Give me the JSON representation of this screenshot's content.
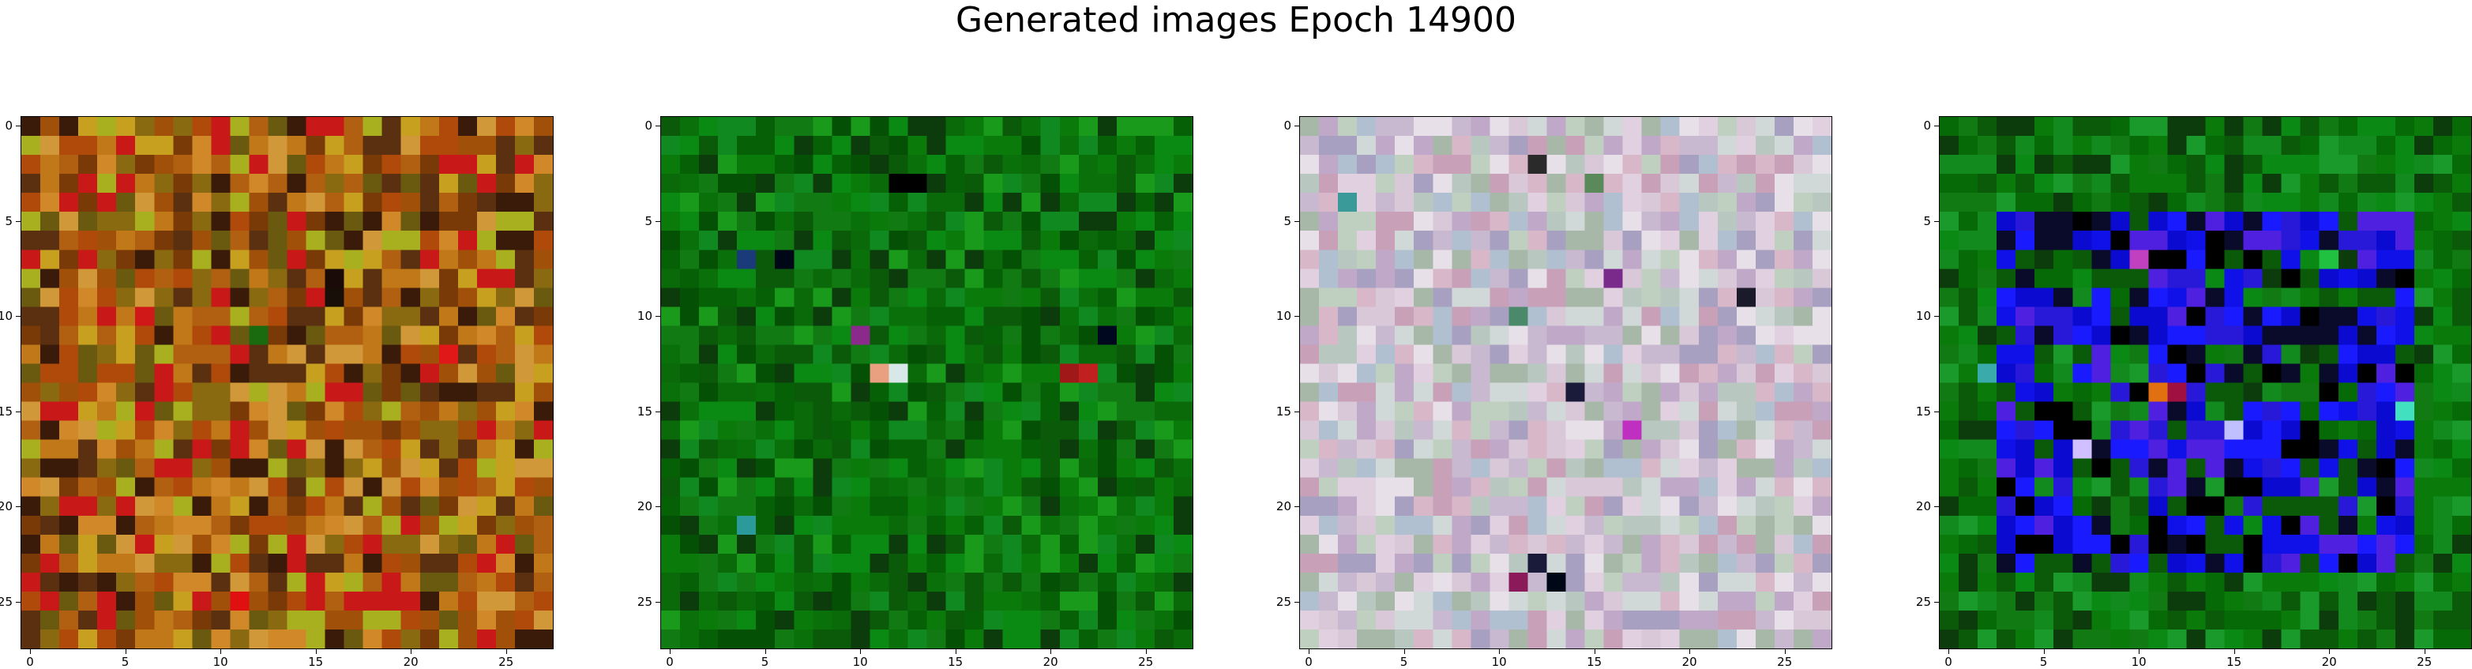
{
  "title": "Generated images Epoch 14900",
  "chart_data": [
    {
      "type": "heatmap",
      "title": "",
      "grid_size": 28,
      "xticks": [
        0,
        5,
        10,
        15,
        20,
        25
      ],
      "yticks": [
        0,
        5,
        10,
        15,
        20,
        25
      ],
      "palette": [
        "#b06010",
        "#c07818",
        "#a05008",
        "#8a6a10",
        "#c8a020",
        "#6a5a10",
        "#b04a0a",
        "#d08828",
        "#7a3a08",
        "#c81818",
        "#3a1a08",
        "#a8b020",
        "#d09838",
        "#5a3010"
      ],
      "highlights": [
        {
          "x": 6,
          "y": 10,
          "color": "#d01818"
        },
        {
          "x": 12,
          "y": 11,
          "color": "#1a6a10"
        },
        {
          "x": 16,
          "y": 8,
          "color": "#1a0a08"
        },
        {
          "x": 22,
          "y": 12,
          "color": "#e01818"
        },
        {
          "x": 11,
          "y": 25,
          "color": "#e01010"
        },
        {
          "x": 16,
          "y": 9,
          "color": "#181008"
        }
      ]
    },
    {
      "type": "heatmap",
      "title": "",
      "grid_size": 28,
      "xticks": [
        0,
        5,
        10,
        15,
        20,
        25
      ],
      "yticks": [
        0,
        5,
        10,
        15,
        20,
        25
      ],
      "palette": [
        "#0a6a0a",
        "#0a7a0a",
        "#066006",
        "#0a8a12",
        "#045004",
        "#108a20",
        "#0a5a0a",
        "#1a9a1a",
        "#0a700a",
        "#0c3c0c",
        "#127a12"
      ],
      "highlights": [
        {
          "x": 12,
          "y": 3,
          "color": "#000000"
        },
        {
          "x": 13,
          "y": 3,
          "color": "#000000"
        },
        {
          "x": 4,
          "y": 7,
          "color": "#1a3a7a"
        },
        {
          "x": 6,
          "y": 7,
          "color": "#000818"
        },
        {
          "x": 10,
          "y": 11,
          "color": "#8a2a8a"
        },
        {
          "x": 12,
          "y": 13,
          "color": "#d8e8e8"
        },
        {
          "x": 11,
          "y": 13,
          "color": "#e8a080"
        },
        {
          "x": 21,
          "y": 13,
          "color": "#a01818"
        },
        {
          "x": 22,
          "y": 13,
          "color": "#c02020"
        },
        {
          "x": 4,
          "y": 21,
          "color": "#2a9a9a"
        },
        {
          "x": 23,
          "y": 11,
          "color": "#000820"
        }
      ]
    },
    {
      "type": "heatmap",
      "title": "",
      "grid_size": 28,
      "xticks": [
        0,
        5,
        10,
        15,
        20,
        25
      ],
      "yticks": [
        0,
        5,
        10,
        15,
        20,
        25
      ],
      "palette": [
        "#d8c8d8",
        "#c8b8d0",
        "#b8c8c0",
        "#e0d0e0",
        "#c0a8c8",
        "#a8b8a8",
        "#d0d8d8",
        "#c8a0b8",
        "#b0c0d0",
        "#e8e0e8",
        "#a8a0c0",
        "#d8b8c8",
        "#c0d0c0"
      ],
      "highlights": [
        {
          "x": 12,
          "y": 2,
          "color": "#2a2a2a"
        },
        {
          "x": 15,
          "y": 3,
          "color": "#5a8a5a"
        },
        {
          "x": 23,
          "y": 9,
          "color": "#1a1a2a"
        },
        {
          "x": 16,
          "y": 8,
          "color": "#7a2a8a"
        },
        {
          "x": 11,
          "y": 10,
          "color": "#4a8a6a"
        },
        {
          "x": 14,
          "y": 14,
          "color": "#1a1a3a"
        },
        {
          "x": 17,
          "y": 16,
          "color": "#c030c0"
        },
        {
          "x": 12,
          "y": 23,
          "color": "#1a1a3a"
        },
        {
          "x": 13,
          "y": 24,
          "color": "#000818"
        },
        {
          "x": 11,
          "y": 24,
          "color": "#8a1a5a"
        },
        {
          "x": 2,
          "y": 4,
          "color": "#3a9a9a"
        }
      ]
    },
    {
      "type": "heatmap",
      "title": "",
      "grid_size": 28,
      "xticks": [
        0,
        5,
        10,
        15,
        20,
        25
      ],
      "yticks": [
        0,
        5,
        10,
        15,
        20,
        25
      ],
      "palette": [
        "#0a7a0a",
        "#0a8a14",
        "#066a06",
        "#128a1e",
        "#0a5a0a",
        "#1a9a2a",
        "#0c3c0c",
        "#127a12"
      ],
      "inner_palette": [
        "#1010e8",
        "#2818d8",
        "#0a0ad0",
        "#5020e0",
        "#000000",
        "#0a0a2a",
        "#1a1aff",
        "#0a5a0a"
      ],
      "inner_box": [
        3,
        5,
        24,
        23
      ],
      "highlights": [
        {
          "x": 10,
          "y": 7,
          "color": "#c040c0"
        },
        {
          "x": 16,
          "y": 7,
          "color": "#000000"
        },
        {
          "x": 20,
          "y": 7,
          "color": "#20c040"
        },
        {
          "x": 2,
          "y": 13,
          "color": "#3aaaaa"
        },
        {
          "x": 11,
          "y": 14,
          "color": "#e07010"
        },
        {
          "x": 12,
          "y": 14,
          "color": "#a01040"
        },
        {
          "x": 15,
          "y": 16,
          "color": "#c0c0ff"
        },
        {
          "x": 7,
          "y": 17,
          "color": "#d0c0ff"
        },
        {
          "x": 24,
          "y": 15,
          "color": "#40e0c0"
        }
      ]
    }
  ]
}
